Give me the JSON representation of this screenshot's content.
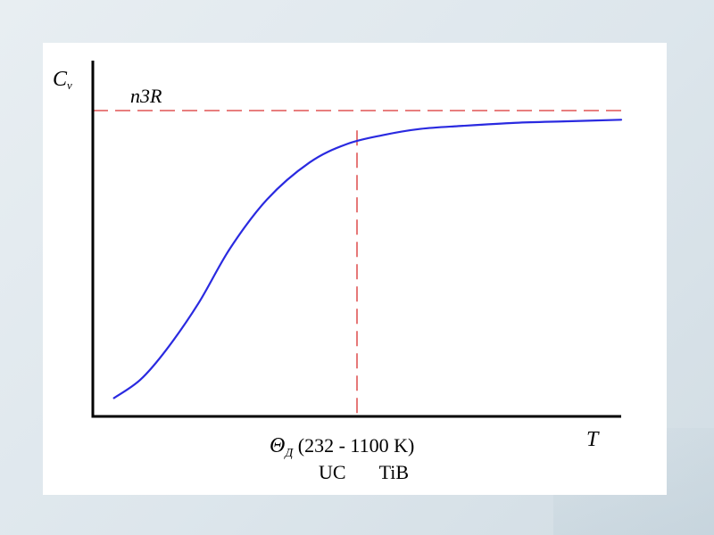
{
  "chart_data": {
    "type": "line",
    "title": "",
    "ylabel": {
      "main": "C",
      "sub": "v"
    },
    "xlabel": "T",
    "asymptote": {
      "label": "n3R",
      "color": "#d93030",
      "style": "dashed"
    },
    "debye_marker": {
      "symbol": "Θ",
      "sub": "Д",
      "range_text": "(232 - 1100 K)",
      "materials": [
        "UC",
        "TiB"
      ],
      "color": "#d93030",
      "style": "dashed"
    },
    "axes": {
      "xlim": [
        0,
        1
      ],
      "ylim": [
        0,
        1
      ],
      "numeric_ticks": false
    },
    "series": [
      {
        "color": "#2a2ae0",
        "note": "heat capacity curve rising sigmoidally toward n3R",
        "x": [
          0.04,
          0.09,
          0.14,
          0.2,
          0.26,
          0.33,
          0.41,
          0.48,
          0.55,
          0.62,
          0.7,
          0.8,
          0.9,
          1.0
        ],
        "y": [
          0.06,
          0.12,
          0.22,
          0.37,
          0.55,
          0.71,
          0.83,
          0.89,
          0.92,
          0.94,
          0.95,
          0.96,
          0.965,
          0.97
        ]
      }
    ],
    "asymptote_y": 1.0,
    "marker_x": 0.5
  },
  "colors": {
    "axis": "#000000",
    "curve": "#2a2ae0",
    "guides": "#d93030",
    "panel": "#ffffff"
  }
}
